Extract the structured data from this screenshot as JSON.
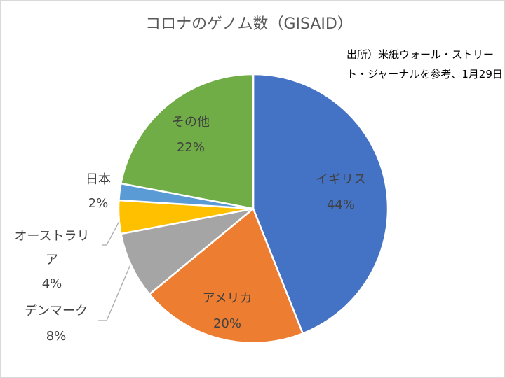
{
  "chart_data": {
    "type": "pie",
    "title": "コロナのゲノム数（GISAID）",
    "annotation": "出所）米紙ウォール・ストリート・ジャーナルを参考、1月29日",
    "start_angle_deg": 0,
    "direction": "clockwise",
    "slices": [
      {
        "label": "イギリス",
        "value": 44,
        "value_label": "44%",
        "color": "#4472c4"
      },
      {
        "label": "アメリカ",
        "value": 20,
        "value_label": "20%",
        "color": "#ed7d31"
      },
      {
        "label": "デンマーク",
        "value": 8,
        "value_label": "8%",
        "color": "#a5a5a5"
      },
      {
        "label": "オーストラリア",
        "value": 4,
        "value_label": "4%",
        "color": "#ffc000"
      },
      {
        "label": "日本",
        "value": 2,
        "value_label": "2%",
        "color": "#5b9bd5"
      },
      {
        "label": "その他",
        "value": 22,
        "value_label": "22%",
        "color": "#70ad47"
      }
    ]
  }
}
